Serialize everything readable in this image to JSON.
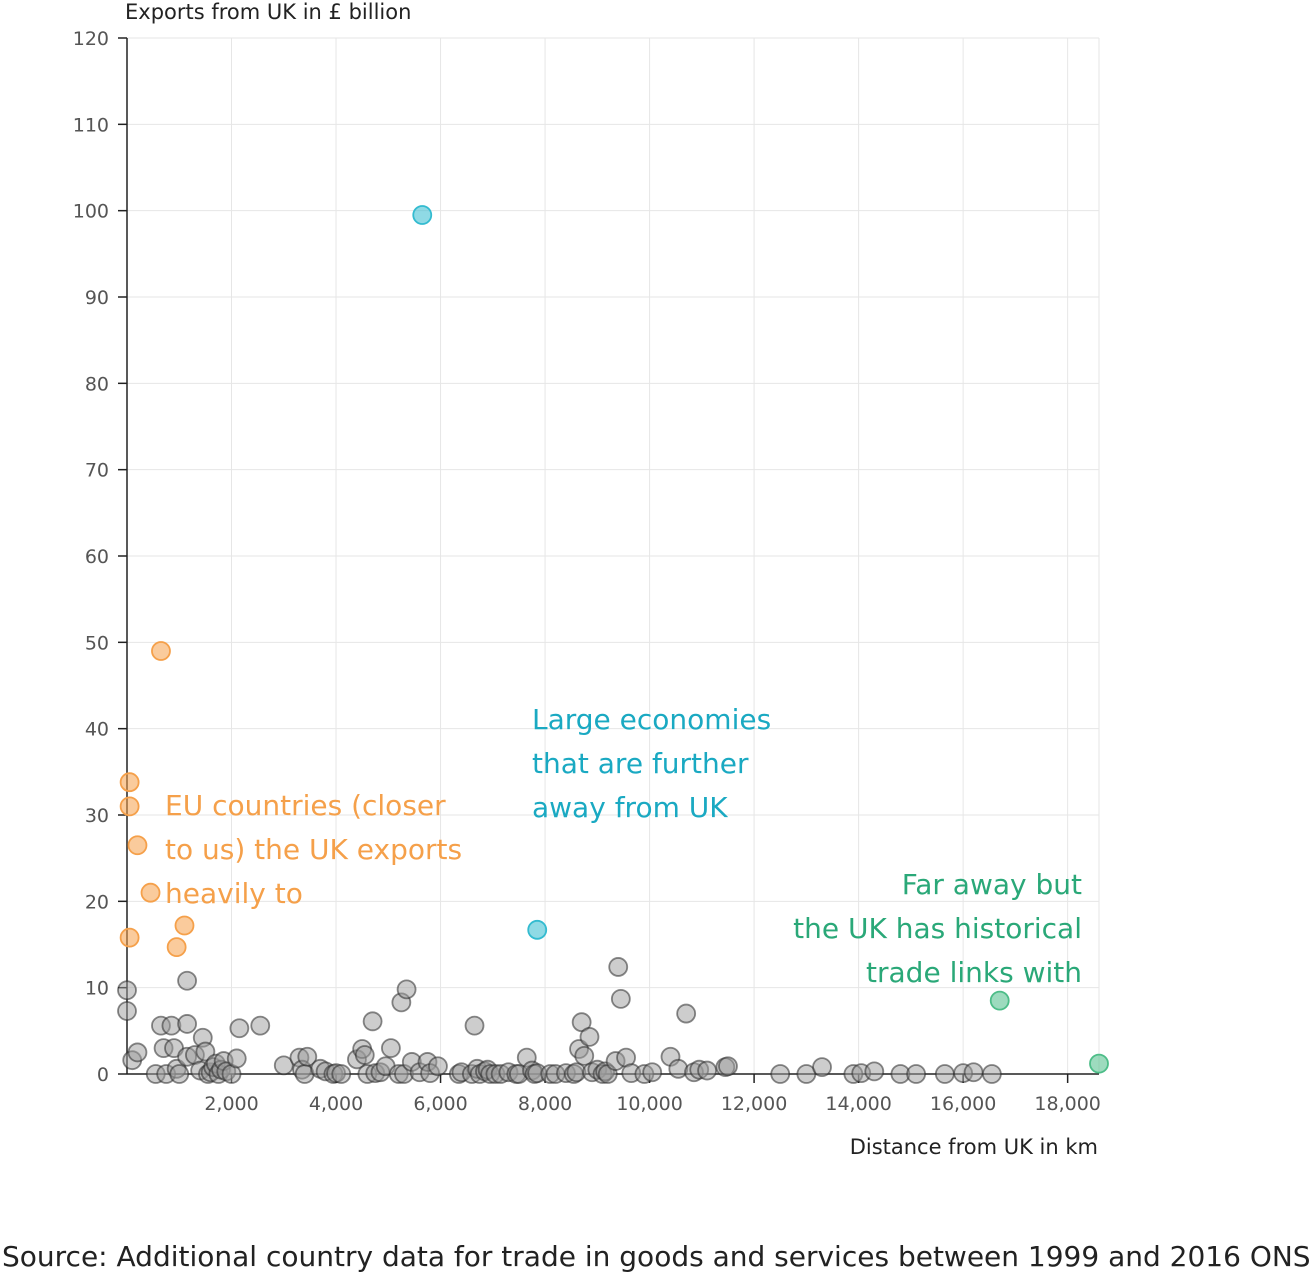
{
  "chart_data": {
    "type": "scatter",
    "ylabel": "Exports from UK in £ billion",
    "xlabel": "Distance from UK in km",
    "xlim": [
      0,
      18600
    ],
    "ylim": [
      0,
      120
    ],
    "xticks": [
      2000,
      4000,
      6000,
      8000,
      10000,
      12000,
      14000,
      16000,
      18000
    ],
    "xtick_labels": [
      "2,000",
      "4,000",
      "6,000",
      "8,000",
      "10,000",
      "12,000",
      "14,000",
      "16,000",
      "18,000"
    ],
    "yticks": [
      0,
      10,
      20,
      30,
      40,
      50,
      60,
      70,
      80,
      90,
      100,
      110,
      120
    ],
    "ytick_labels": [
      "0",
      "10",
      "20",
      "30",
      "40",
      "50",
      "60",
      "70",
      "80",
      "90",
      "100",
      "110",
      "120"
    ],
    "grid": true,
    "groups": [
      {
        "key": "eu",
        "color": "#f5a04a",
        "points": [
          [
            650,
            49
          ],
          [
            50,
            33.8
          ],
          [
            50,
            31
          ],
          [
            200,
            26.5
          ],
          [
            450,
            21
          ],
          [
            50,
            15.8
          ],
          [
            1100,
            17.2
          ],
          [
            950,
            14.7
          ]
        ]
      },
      {
        "key": "large",
        "color": "#33bbd0",
        "points": [
          [
            5650,
            99.5
          ],
          [
            7850,
            16.7
          ]
        ]
      },
      {
        "key": "historical",
        "color": "#4dbd88",
        "points": [
          [
            16700,
            8.5
          ],
          [
            18600,
            1.2
          ]
        ]
      },
      {
        "key": "other",
        "color": "#9c9c9c",
        "points": [
          [
            0,
            9.7
          ],
          [
            0,
            7.3
          ],
          [
            100,
            1.6
          ],
          [
            200,
            2.5
          ],
          [
            550,
            0
          ],
          [
            650,
            5.6
          ],
          [
            700,
            3
          ],
          [
            750,
            0
          ],
          [
            850,
            5.6
          ],
          [
            900,
            3
          ],
          [
            950,
            0.6
          ],
          [
            1000,
            0
          ],
          [
            1150,
            10.8
          ],
          [
            1150,
            5.8
          ],
          [
            1150,
            2
          ],
          [
            1300,
            2.2
          ],
          [
            1400,
            0.4
          ],
          [
            1450,
            4.2
          ],
          [
            1500,
            2.6
          ],
          [
            1550,
            0
          ],
          [
            1600,
            0.2
          ],
          [
            1650,
            0.8
          ],
          [
            1700,
            1.2
          ],
          [
            1750,
            0
          ],
          [
            1800,
            0.5
          ],
          [
            1850,
            1.5
          ],
          [
            1900,
            0.3
          ],
          [
            2000,
            0
          ],
          [
            2100,
            1.8
          ],
          [
            2150,
            5.3
          ],
          [
            2550,
            5.6
          ],
          [
            3000,
            1
          ],
          [
            3300,
            1.9
          ],
          [
            3350,
            0.5
          ],
          [
            3400,
            0
          ],
          [
            3450,
            2
          ],
          [
            3700,
            0.6
          ],
          [
            3800,
            0.3
          ],
          [
            3950,
            0
          ],
          [
            4000,
            0.1
          ],
          [
            4100,
            0
          ],
          [
            4400,
            1.7
          ],
          [
            4500,
            2.9
          ],
          [
            4550,
            2.2
          ],
          [
            4600,
            0
          ],
          [
            4700,
            6.1
          ],
          [
            4750,
            0.1
          ],
          [
            4850,
            0.2
          ],
          [
            4950,
            0.9
          ],
          [
            5050,
            3
          ],
          [
            5200,
            0
          ],
          [
            5250,
            8.3
          ],
          [
            5300,
            0
          ],
          [
            5350,
            9.8
          ],
          [
            5450,
            1.4
          ],
          [
            5600,
            0.2
          ],
          [
            5750,
            1.4
          ],
          [
            5800,
            0.1
          ],
          [
            5950,
            0.9
          ],
          [
            6350,
            0
          ],
          [
            6400,
            0.2
          ],
          [
            6600,
            0
          ],
          [
            6650,
            5.6
          ],
          [
            6700,
            0.6
          ],
          [
            6750,
            0
          ],
          [
            6850,
            0.3
          ],
          [
            6900,
            0.5
          ],
          [
            6950,
            0
          ],
          [
            7050,
            0
          ],
          [
            7150,
            0
          ],
          [
            7300,
            0.2
          ],
          [
            7450,
            0
          ],
          [
            7500,
            0
          ],
          [
            7650,
            1.9
          ],
          [
            7750,
            0.4
          ],
          [
            7800,
            0
          ],
          [
            7850,
            0.1
          ],
          [
            8100,
            0
          ],
          [
            8200,
            0
          ],
          [
            8400,
            0.1
          ],
          [
            8550,
            0
          ],
          [
            8600,
            0.2
          ],
          [
            8650,
            2.9
          ],
          [
            8700,
            6
          ],
          [
            8750,
            2.1
          ],
          [
            8850,
            4.3
          ],
          [
            8900,
            0.2
          ],
          [
            9000,
            0.5
          ],
          [
            9100,
            0
          ],
          [
            9150,
            0.3
          ],
          [
            9200,
            0
          ],
          [
            9350,
            1.5
          ],
          [
            9400,
            12.4
          ],
          [
            9450,
            8.7
          ],
          [
            9550,
            1.9
          ],
          [
            9650,
            0.1
          ],
          [
            9900,
            0
          ],
          [
            10050,
            0.2
          ],
          [
            10400,
            2
          ],
          [
            10550,
            0.6
          ],
          [
            10700,
            7
          ],
          [
            10850,
            0.2
          ],
          [
            10950,
            0.5
          ],
          [
            11100,
            0.4
          ],
          [
            11450,
            0.8
          ],
          [
            11500,
            0.9
          ],
          [
            12500,
            0
          ],
          [
            13000,
            0
          ],
          [
            13300,
            0.8
          ],
          [
            13900,
            0
          ],
          [
            14050,
            0.1
          ],
          [
            14300,
            0.3
          ],
          [
            14800,
            0
          ],
          [
            15100,
            0
          ],
          [
            15650,
            0
          ],
          [
            16000,
            0.1
          ],
          [
            16200,
            0.2
          ],
          [
            16550,
            0
          ]
        ]
      }
    ]
  },
  "annotations": {
    "eu": [
      "EU countries (closer",
      "to us) the UK exports",
      "heavily to"
    ],
    "large": [
      "Large economies",
      "that are further",
      "away from UK"
    ],
    "historical": [
      "Far away but",
      "the UK has historical",
      "trade links with"
    ]
  },
  "colors": {
    "eu": "#f5a04a",
    "large": "#1aa9c2",
    "historical": "#2aa878"
  },
  "source": "Source: Additional country data for trade in goods and services between 1999 and 2016 ONS"
}
